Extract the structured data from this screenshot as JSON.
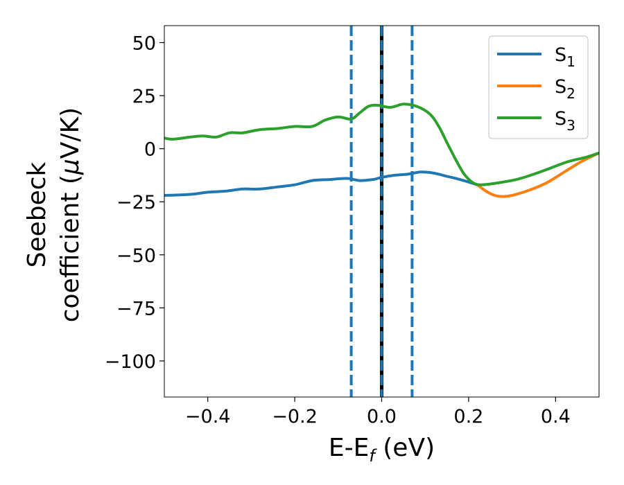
{
  "chart_data": {
    "type": "line",
    "xlabel": {
      "base": "E-E",
      "sub": "f",
      "rest": " (eV)"
    },
    "ylabel": {
      "line1": "Seebeck",
      "line2_pre": "coefficient  (",
      "mu": "μ",
      "line2_post": "V/K)"
    },
    "xlim": [
      -0.5,
      0.5
    ],
    "ylim": [
      -117,
      58
    ],
    "xticks": [
      -0.4,
      -0.2,
      0.0,
      0.2,
      0.4
    ],
    "xtick_labels": [
      "−0.4",
      "−0.2",
      "0.0",
      "0.2",
      "0.4"
    ],
    "yticks": [
      50,
      25,
      0,
      -25,
      -50,
      -75,
      -100
    ],
    "ytick_labels": [
      "50",
      "25",
      "0",
      "−25",
      "−50",
      "−75",
      "−100"
    ],
    "grid": false,
    "legend_position": "upper right",
    "vlines": [
      {
        "x": -0.07,
        "color": "#1f77b4",
        "style": "dashed"
      },
      {
        "x": 0.0,
        "color": "#000000",
        "style": "solid"
      },
      {
        "x": 0.0,
        "color": "#1f77b4",
        "style": "dashed"
      },
      {
        "x": 0.07,
        "color": "#1f77b4",
        "style": "dashed"
      }
    ],
    "series": [
      {
        "name": "S",
        "sub": "1",
        "color": "#1f77b4",
        "x": [
          -0.5,
          -0.44,
          -0.4,
          -0.36,
          -0.32,
          -0.28,
          -0.24,
          -0.2,
          -0.16,
          -0.12,
          -0.08,
          -0.05,
          -0.02,
          0.0,
          0.03,
          0.06,
          0.09,
          0.12,
          0.15,
          0.18,
          0.22
        ],
        "y": [
          -22,
          -21.5,
          -20.5,
          -20,
          -19,
          -19,
          -18,
          -17,
          -15,
          -14.5,
          -14,
          -15,
          -14.5,
          -13.5,
          -12.5,
          -12,
          -11,
          -11.5,
          -13,
          -14.5,
          -17
        ]
      },
      {
        "name": "S",
        "sub": "2",
        "color": "#ff7f0e",
        "x": [
          0.22,
          0.24,
          0.26,
          0.28,
          0.3,
          0.34,
          0.38,
          0.42,
          0.46,
          0.5
        ],
        "y": [
          -17,
          -20,
          -22,
          -22.5,
          -22,
          -19.5,
          -16,
          -11,
          -6,
          -2
        ]
      },
      {
        "name": "S",
        "sub": "3",
        "color": "#2ca02c",
        "x": [
          -0.5,
          -0.48,
          -0.44,
          -0.41,
          -0.38,
          -0.35,
          -0.32,
          -0.28,
          -0.24,
          -0.2,
          -0.16,
          -0.13,
          -0.1,
          -0.07,
          -0.05,
          -0.03,
          -0.01,
          0.02,
          0.05,
          0.08,
          0.11,
          0.13,
          0.15,
          0.17,
          0.19,
          0.21,
          0.23,
          0.27,
          0.31,
          0.35,
          0.39,
          0.43,
          0.47,
          0.5
        ],
        "y": [
          5,
          4.5,
          5.5,
          6,
          5.5,
          7.5,
          7.5,
          9,
          9.5,
          10.5,
          10.5,
          13.5,
          15,
          14,
          17,
          20,
          20.5,
          19.5,
          21,
          20,
          16.5,
          11,
          3,
          -5,
          -12,
          -16,
          -17,
          -16,
          -14.5,
          -12,
          -9,
          -6,
          -4,
          -2
        ]
      }
    ]
  }
}
